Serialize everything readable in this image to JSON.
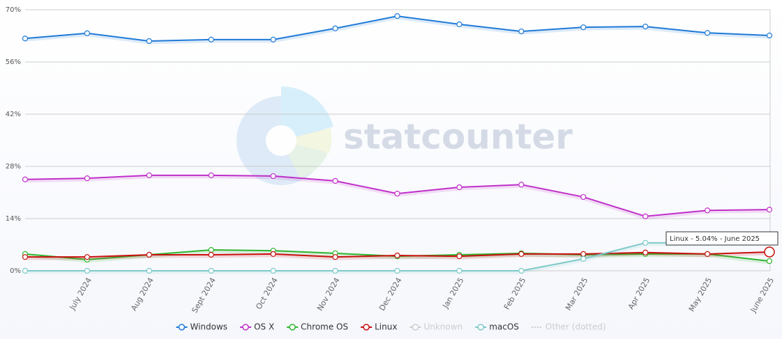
{
  "chart_data": {
    "type": "line",
    "watermark": "statcounter",
    "tooltip": "Linux - 5.04% - June 2025",
    "categories": [
      null,
      "July 2024",
      "Aug 2024",
      "Sept 2024",
      "Oct 2024",
      "Nov 2024",
      "Dec 2024",
      "Jan 2025",
      "Feb 2025",
      "Mar 2025",
      "Apr 2025",
      "May 2025",
      "June 2025"
    ],
    "ylim": [
      0,
      70
    ],
    "yticks": [
      {
        "value": 0,
        "label": "0%"
      },
      {
        "value": 14,
        "label": "14%"
      },
      {
        "value": 28,
        "label": "28%"
      },
      {
        "value": 42,
        "label": "42%"
      },
      {
        "value": 56,
        "label": "56%"
      },
      {
        "value": 70,
        "label": "70%"
      }
    ],
    "grid": true,
    "legend": "bottom",
    "series": [
      {
        "name": "Windows",
        "color": "#1f7ad6",
        "values": [
          62.3,
          63.7,
          61.6,
          62.0,
          62.0,
          65.0,
          68.3,
          66.1,
          64.2,
          65.3,
          65.5,
          63.8,
          63.1
        ]
      },
      {
        "name": "OS X",
        "color": "#c02fc9",
        "values": [
          24.5,
          24.8,
          25.6,
          25.6,
          25.4,
          24.1,
          20.7,
          22.4,
          23.1,
          19.8,
          14.6,
          16.2,
          16.4
        ]
      },
      {
        "name": "Chrome OS",
        "color": "#2fb52f",
        "values": [
          4.5,
          3.0,
          4.3,
          5.6,
          5.4,
          4.7,
          3.9,
          4.3,
          4.7,
          4.3,
          4.5,
          4.5,
          2.6
        ]
      },
      {
        "name": "Linux",
        "color": "#c90f0f",
        "values": [
          3.7,
          3.7,
          4.3,
          4.3,
          4.5,
          3.7,
          4.1,
          3.9,
          4.5,
          4.5,
          4.9,
          4.5,
          5.04
        ]
      },
      {
        "name": "Unknown",
        "color": "#cccccc",
        "visible": false,
        "values": [
          null,
          null,
          null,
          null,
          null,
          null,
          null,
          null,
          null,
          null,
          null,
          null,
          null
        ]
      },
      {
        "name": "macOS",
        "color": "#7ec9c9",
        "values": [
          0,
          0,
          0,
          0,
          0,
          0,
          0,
          0,
          0,
          3.2,
          7.5,
          7.5,
          7.6
        ]
      },
      {
        "name": "Other (dotted)",
        "color": "#dddddd",
        "visible": false,
        "dotted": true,
        "values": [
          null,
          null,
          null,
          null,
          null,
          null,
          null,
          null,
          null,
          null,
          null,
          null,
          null
        ]
      }
    ]
  }
}
